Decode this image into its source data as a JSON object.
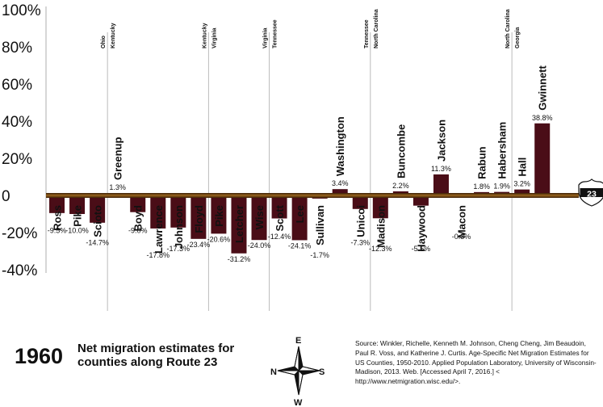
{
  "chart_data": {
    "type": "bar",
    "ylim": [
      -40,
      100
    ],
    "yticks": [
      "100%",
      "80%",
      "60%",
      "40%",
      "20%",
      "0",
      "-20%",
      "-40%"
    ],
    "categories": [
      {
        "name": "Ross",
        "value": -9.5,
        "label": "-9.5%"
      },
      {
        "name": "Pike",
        "value": -10.0,
        "label": "-10.0%"
      },
      {
        "name": "Scioto",
        "value": -14.7,
        "label": "-14.7%"
      },
      {
        "name": "Greenup",
        "value": 1.3,
        "label": "1.3%"
      },
      {
        "name": "Boyd",
        "value": -9.0,
        "label": "-9.0%"
      },
      {
        "name": "Lawrence",
        "value": -17.8,
        "label": "-17.8%"
      },
      {
        "name": "Johnson",
        "value": -17.3,
        "label": "-17.3%"
      },
      {
        "name": "Floyd",
        "value": -23.4,
        "label": "-23.4%"
      },
      {
        "name": "Pike",
        "value": -20.6,
        "label": "-20.6%"
      },
      {
        "name": "Letcher",
        "value": -31.2,
        "label": "-31.2%"
      },
      {
        "name": "Wise",
        "value": -24.0,
        "label": "-24.0%"
      },
      {
        "name": "Scott",
        "value": -12.4,
        "label": "-12.4%"
      },
      {
        "name": "Lee",
        "value": -24.1,
        "label": "-24.1%"
      },
      {
        "name": "Sullivan",
        "value": -1.7,
        "label": "-1.7%"
      },
      {
        "name": "Washington",
        "value": 3.4,
        "label": "3.4%"
      },
      {
        "name": "Unicoi",
        "value": -7.3,
        "label": "-7.3%"
      },
      {
        "name": "Madison",
        "value": -12.3,
        "label": "-12.3%"
      },
      {
        "name": "Buncombe",
        "value": 2.2,
        "label": "2.2%"
      },
      {
        "name": "Haywood",
        "value": -5.5,
        "label": "-5.5%"
      },
      {
        "name": "Jackson",
        "value": 11.3,
        "label": "11.3%"
      },
      {
        "name": "Macon",
        "value": -0.3,
        "label": "-0.3%"
      },
      {
        "name": "Rabun",
        "value": 1.8,
        "label": "1.8%"
      },
      {
        "name": "Habersham",
        "value": 1.9,
        "label": "1.9%"
      },
      {
        "name": "Hall",
        "value": 3.2,
        "label": "3.2%"
      },
      {
        "name": "Gwinnett",
        "value": 38.8,
        "label": "38.8%"
      }
    ],
    "state_dividers": [
      {
        "after_index": 2,
        "left": "Ohio",
        "right": "Kentucky"
      },
      {
        "after_index": 7,
        "left": "Kentucky",
        "right": "Virginia"
      },
      {
        "after_index": 10,
        "left": "Virginia",
        "right": "Tennessee"
      },
      {
        "after_index": 15,
        "left": "Tennessee",
        "right": "North Carolina"
      },
      {
        "after_index": 22,
        "left": "North Carolina",
        "right": "Georgia"
      }
    ],
    "route_shield": "23",
    "colors": {
      "bar": "#4a0d17",
      "baseline": "#8a5a1a",
      "divider": "#bbbbbb"
    }
  },
  "footer": {
    "year": "1960",
    "title": "Net migration estimates for counties along Route 23",
    "compass": {
      "n": "N",
      "e": "E",
      "s": "S",
      "w": "W"
    },
    "source": "Source: Winkler, Richelle, Kenneth M. Johnson, Cheng Cheng, Jim Beaudoin, Paul R. Voss, and Katherine J. Curtis. Age-Specific Net Migration Estimates for US Counties, 1950-2010. Applied Population Laboratory, University of Wisconsin- Madison, 2013. Web. [Accessed April 7, 2016.] < http://www.netmigration.wisc.edu/>."
  }
}
